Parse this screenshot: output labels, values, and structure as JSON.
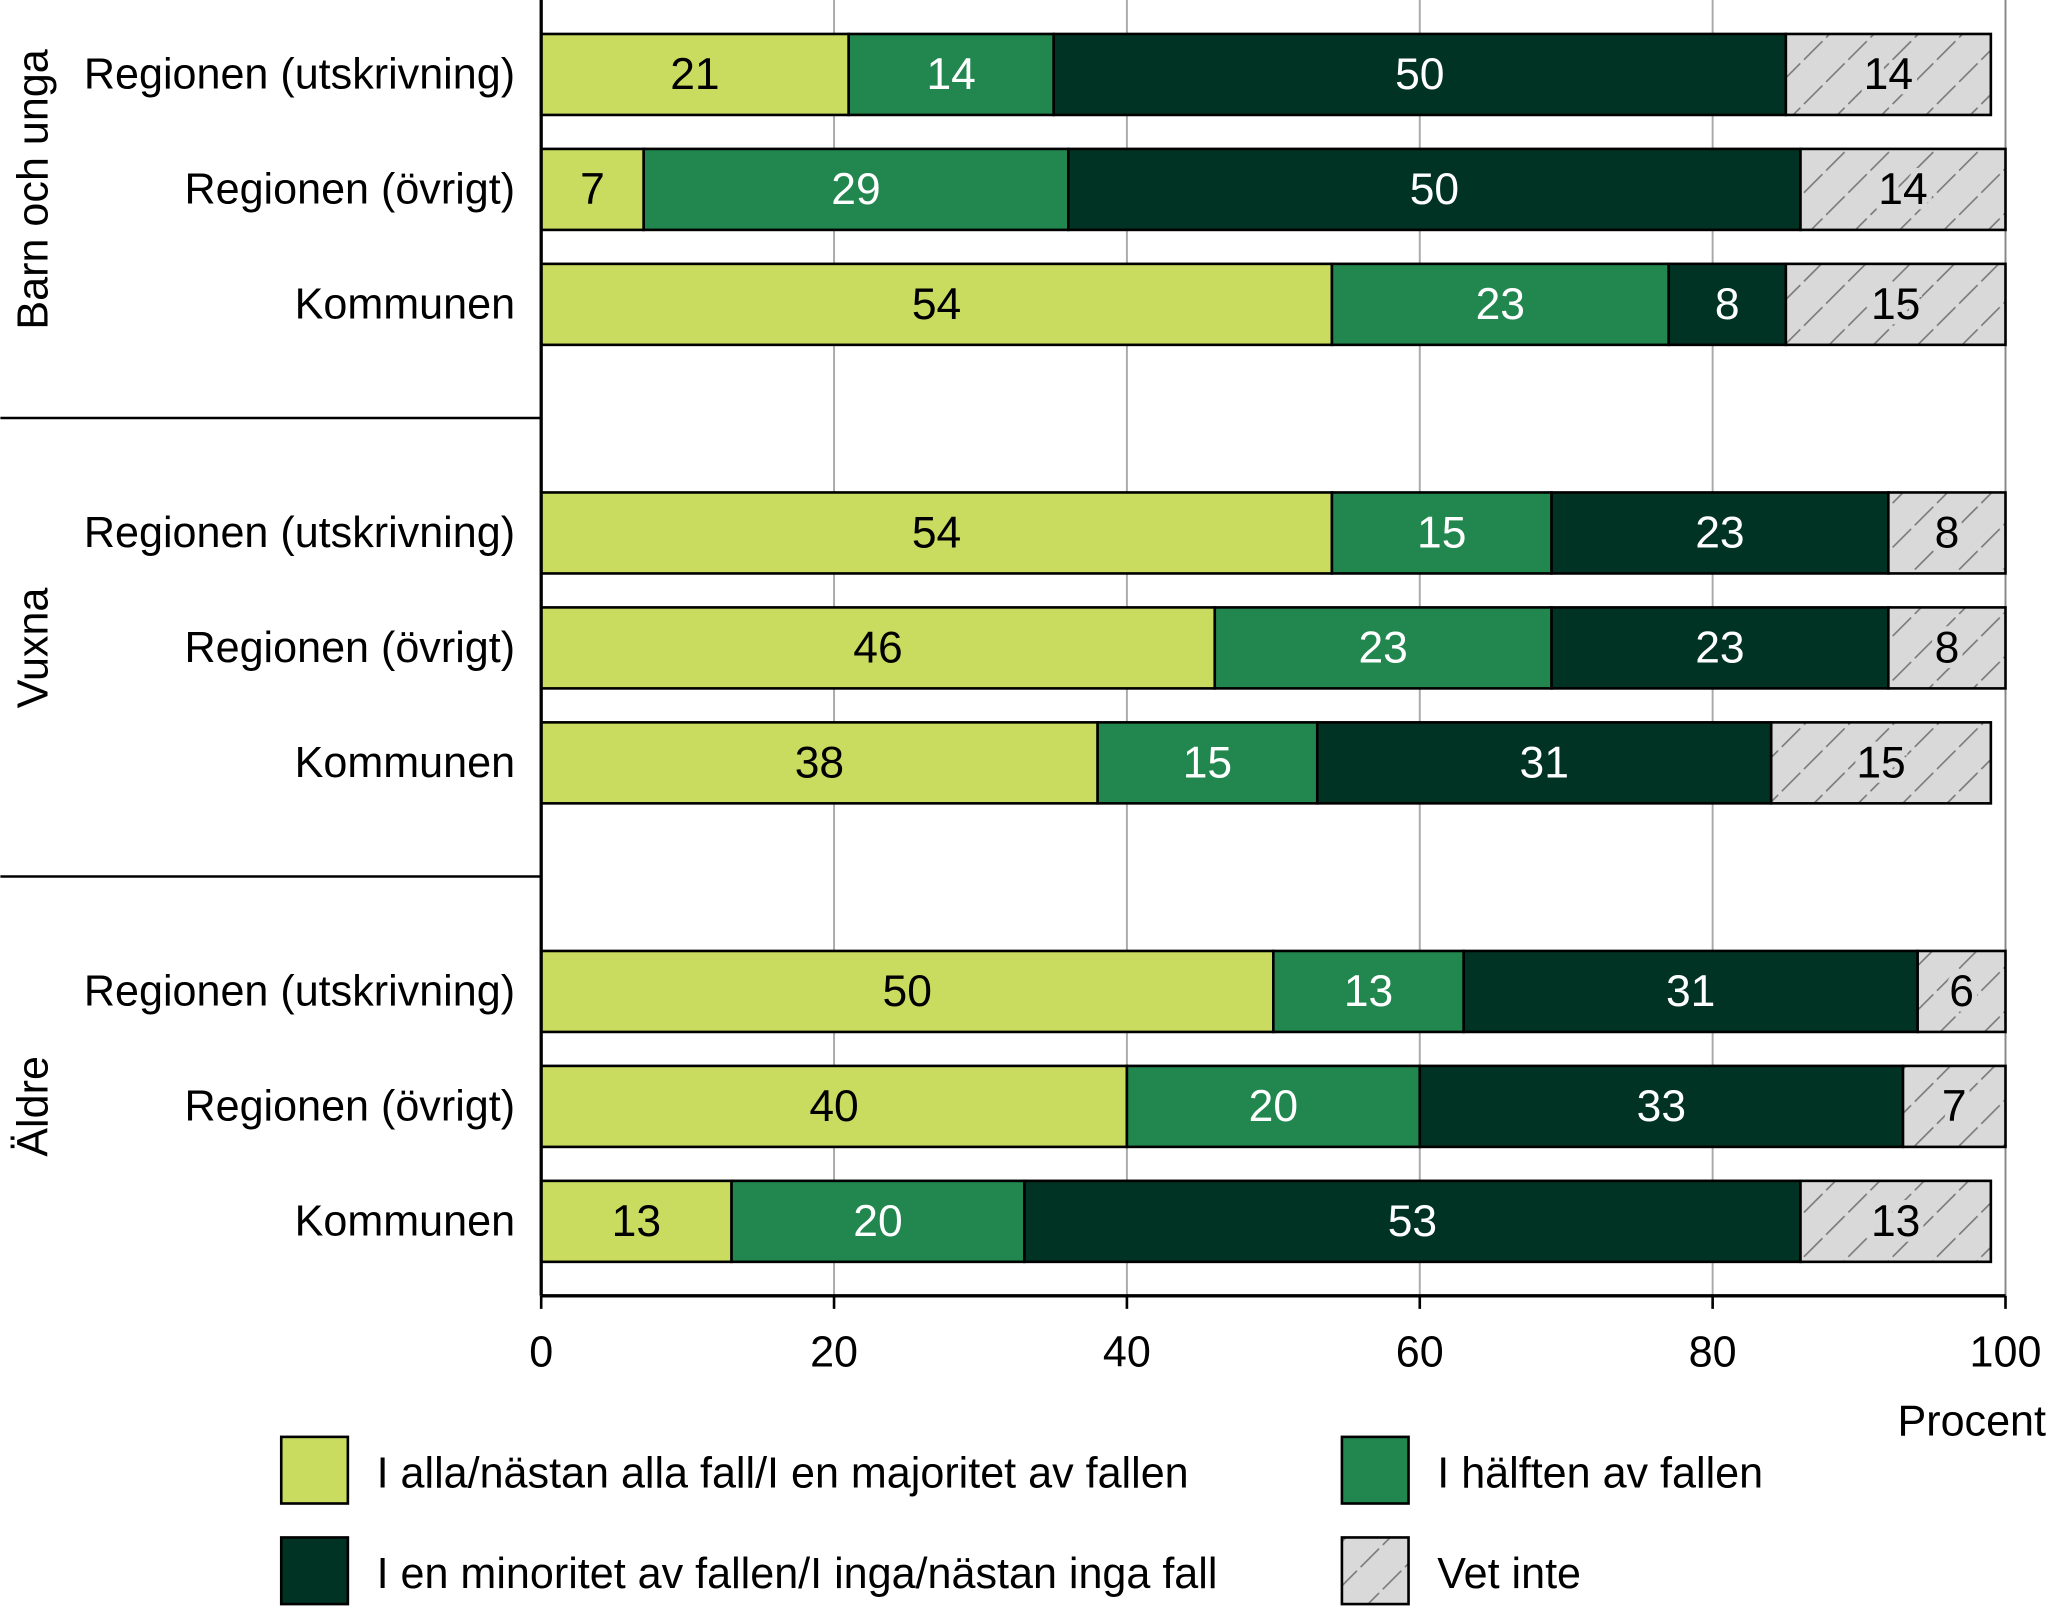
{
  "chart_data": {
    "type": "bar",
    "orientation": "horizontal",
    "stacked": true,
    "xlabel": "Procent",
    "xlim": [
      0,
      100
    ],
    "xticks": [
      "0",
      "20",
      "40",
      "60",
      "80",
      "100"
    ],
    "grid": true,
    "legend_placement": "bottom",
    "groups": [
      {
        "name": "Barn och unga",
        "rows": [
          {
            "label": "Regionen (utskrivning)",
            "values": [
              21,
              14,
              50,
              14
            ]
          },
          {
            "label": "Regionen (övrigt)",
            "values": [
              7,
              29,
              50,
              14
            ]
          },
          {
            "label": "Kommunen",
            "values": [
              54,
              23,
              8,
              15
            ]
          }
        ]
      },
      {
        "name": "Vuxna",
        "rows": [
          {
            "label": "Regionen (utskrivning)",
            "values": [
              54,
              15,
              23,
              8
            ]
          },
          {
            "label": "Regionen (övrigt)",
            "values": [
              46,
              23,
              23,
              8
            ]
          },
          {
            "label": "Kommunen",
            "values": [
              38,
              15,
              31,
              15
            ]
          }
        ]
      },
      {
        "name": "Äldre",
        "rows": [
          {
            "label": "Regionen (utskrivning)",
            "values": [
              50,
              13,
              31,
              6
            ]
          },
          {
            "label": "Regionen (övrigt)",
            "values": [
              40,
              20,
              33,
              7
            ]
          },
          {
            "label": "Kommunen",
            "values": [
              13,
              20,
              53,
              13
            ]
          }
        ]
      }
    ],
    "series": [
      {
        "name": "I alla/nästan alla fall/I en majoritet av fallen",
        "color": "#c9dc5f",
        "text_color": "#000000"
      },
      {
        "name": "I hälften av fallen",
        "color": "#22874f",
        "text_color": "#ffffff"
      },
      {
        "name": "I en minoritet av fallen/I inga/nästan inga fall",
        "color": "#003324",
        "text_color": "#ffffff"
      },
      {
        "name": "Vet inte",
        "color": "#d9d9d9",
        "pattern": "hatched",
        "text_color": "#000000"
      }
    ]
  }
}
